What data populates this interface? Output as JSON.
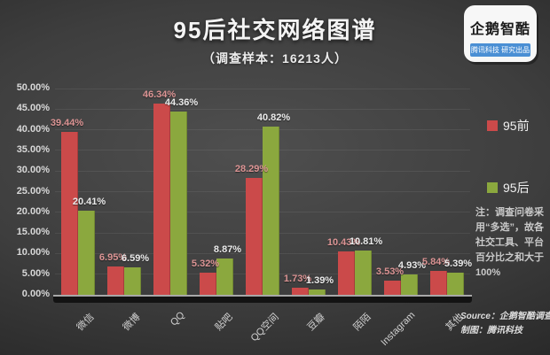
{
  "header": {
    "title": "95后社交网络图谱",
    "subtitle": "（调查样本：16213人）"
  },
  "logo": {
    "name": "企鹅智酷",
    "tagline": "腾讯科技 研究出品"
  },
  "legend": [
    {
      "label": "95前",
      "color": "#cb4a4a"
    },
    {
      "label": "95后",
      "color": "#8ba83e"
    }
  ],
  "note": "注：调查问卷采用“多选”，故各社交工具、平台百分比之和大于100%",
  "source": {
    "line1": "Source：企鹅智酷调查",
    "line2": "制图：腾讯科技"
  },
  "chart_data": {
    "type": "bar",
    "title": "95后社交网络图谱",
    "subtitle": "（调查样本：16213人）",
    "categories": [
      "微信",
      "微博",
      "QQ",
      "贴吧",
      "QQ空间",
      "豆瓣",
      "陌陌",
      "Instagram",
      "其他"
    ],
    "series": [
      {
        "name": "95前",
        "color": "#cb4a4a",
        "label_color": "#dc9494",
        "values": [
          39.44,
          6.95,
          46.34,
          5.32,
          28.29,
          1.73,
          10.43,
          3.53,
          5.84
        ]
      },
      {
        "name": "95后",
        "color": "#8ba83e",
        "label_color": "#ebebeb",
        "values": [
          20.41,
          6.59,
          44.36,
          8.87,
          40.82,
          1.39,
          10.81,
          4.93,
          5.39
        ]
      }
    ],
    "ylim": [
      0,
      50
    ],
    "ytick_step": 5,
    "ytick_labels": [
      "0.00%",
      "5.00%",
      "10.00%",
      "15.00%",
      "20.00%",
      "25.00%",
      "30.00%",
      "35.00%",
      "40.00%",
      "45.00%",
      "50.00%"
    ],
    "value_suffix": "%",
    "grid": true,
    "legend_position": "right",
    "xlabel_rotation": -45
  }
}
